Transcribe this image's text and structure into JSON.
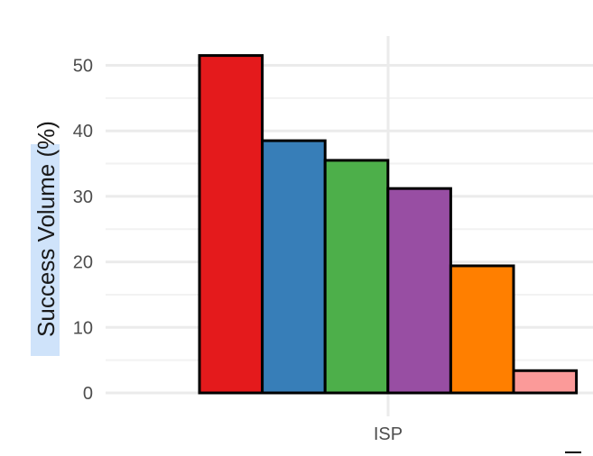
{
  "chart_data": {
    "type": "bar",
    "title": "",
    "xlabel": "",
    "ylabel": "Success Volume (%)",
    "categories": [
      "ISP"
    ],
    "series": [
      {
        "values": [
          51.5
        ],
        "color": "#e41a1c"
      },
      {
        "values": [
          38.5
        ],
        "color": "#377eb8"
      },
      {
        "values": [
          35.5
        ],
        "color": "#4daf4a"
      },
      {
        "values": [
          31.2
        ],
        "color": "#984ea3"
      },
      {
        "values": [
          19.4
        ],
        "color": "#ff7f00"
      },
      {
        "values": [
          3.4
        ],
        "color": "#fb9a99"
      }
    ],
    "ylim": [
      0,
      55
    ],
    "yticks": [
      0,
      10,
      20,
      30,
      40,
      50
    ],
    "grid": true,
    "legend": "none",
    "ylabel_highlight_color": "#cfe3fa"
  }
}
